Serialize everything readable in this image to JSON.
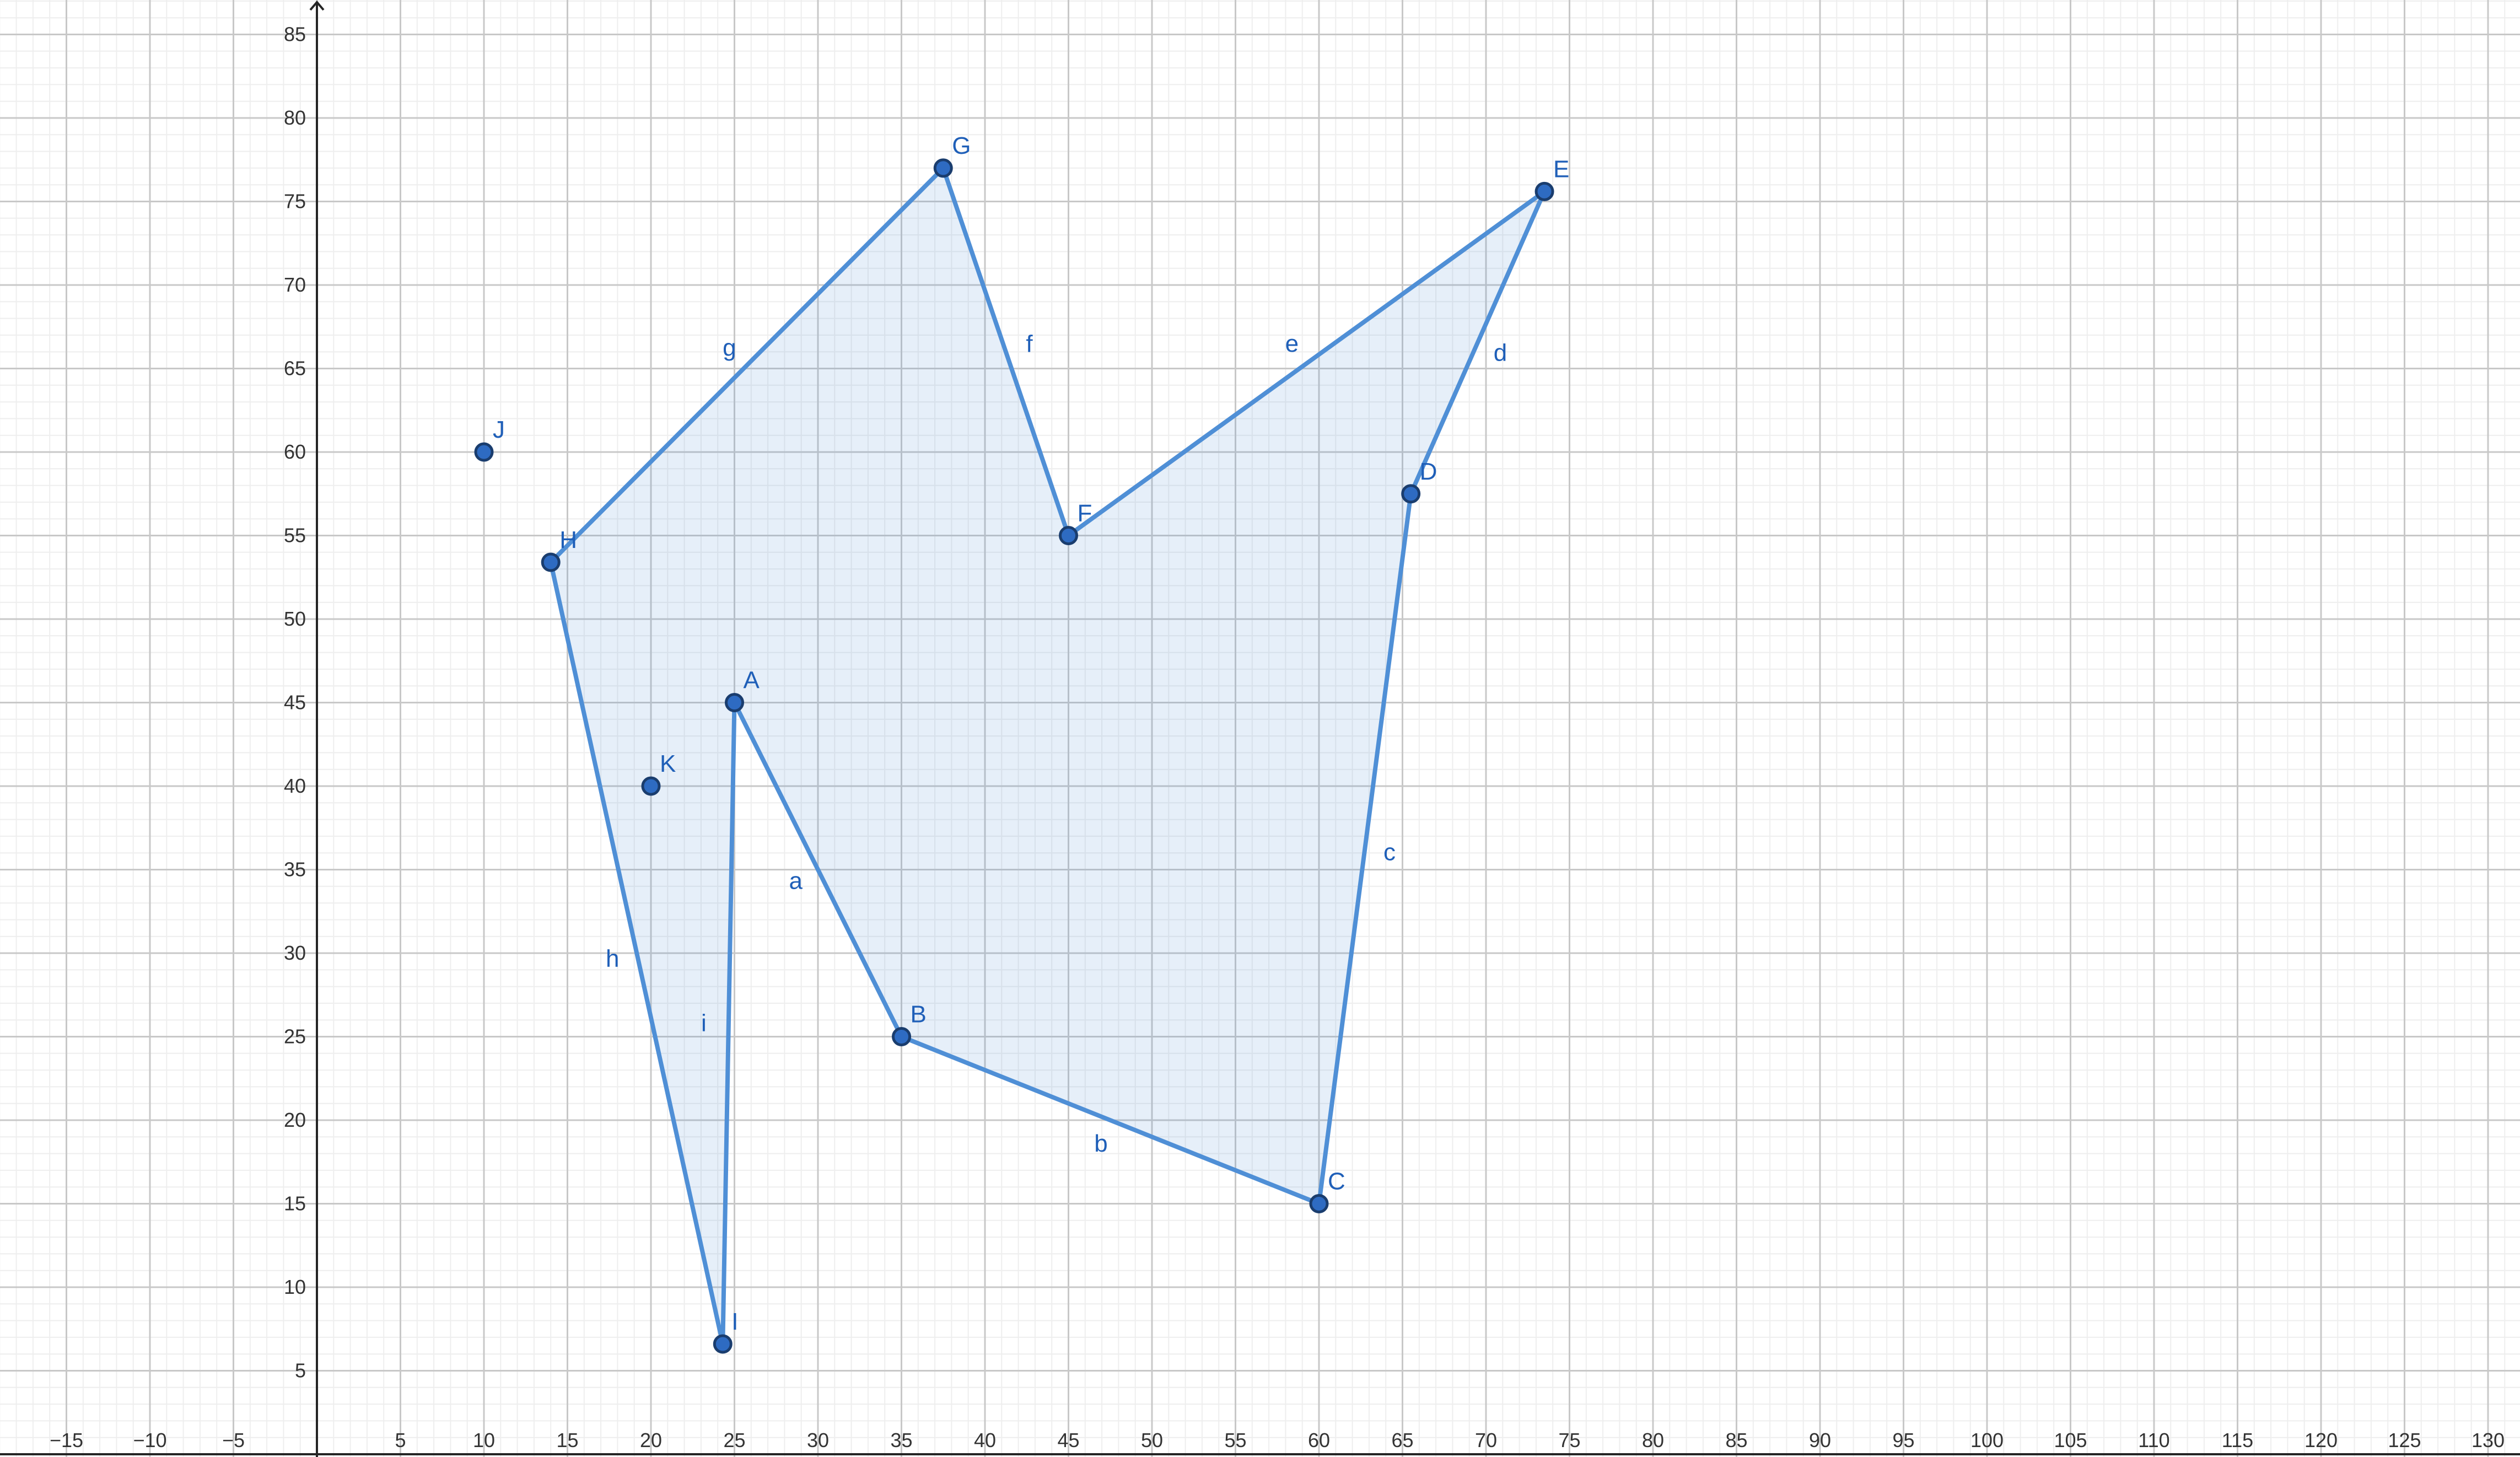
{
  "axes": {
    "x_ticks": [
      -15,
      -10,
      -5,
      5,
      10,
      15,
      20,
      25,
      30,
      35,
      40,
      45,
      50,
      55,
      60,
      65,
      70,
      75,
      80,
      85,
      90,
      95,
      100,
      105,
      110,
      115,
      120,
      125,
      130
    ],
    "y_ticks": [
      5,
      10,
      15,
      20,
      25,
      30,
      35,
      40,
      45,
      50,
      55,
      60,
      65,
      70,
      75,
      80,
      85
    ],
    "x_range": [
      -19,
      131.7
    ],
    "y_range": [
      0,
      87
    ],
    "grid": true,
    "minor_step": 1,
    "major_step": 5
  },
  "colors": {
    "line": "#4f8fd6",
    "fill": "#4f8fd6",
    "fill_opacity": 0.14,
    "point": "#2e6bc2",
    "label": "#1f5fb8"
  },
  "points": [
    {
      "id": "A",
      "x": 25,
      "y": 45
    },
    {
      "id": "B",
      "x": 35,
      "y": 25
    },
    {
      "id": "C",
      "x": 60,
      "y": 15
    },
    {
      "id": "D",
      "x": 65.5,
      "y": 57.5
    },
    {
      "id": "E",
      "x": 73.5,
      "y": 75.6
    },
    {
      "id": "F",
      "x": 45,
      "y": 55
    },
    {
      "id": "G",
      "x": 37.5,
      "y": 77
    },
    {
      "id": "H",
      "x": 14,
      "y": 53.4
    },
    {
      "id": "I",
      "x": 24.3,
      "y": 6.6
    },
    {
      "id": "J",
      "x": 10,
      "y": 60
    },
    {
      "id": "K",
      "x": 20,
      "y": 40
    }
  ],
  "polygon": [
    "A",
    "B",
    "C",
    "D",
    "E",
    "F",
    "G",
    "H",
    "I"
  ],
  "edges": [
    {
      "label": "a",
      "from": "A",
      "to": "B"
    },
    {
      "label": "b",
      "from": "B",
      "to": "C"
    },
    {
      "label": "c",
      "from": "C",
      "to": "D"
    },
    {
      "label": "d",
      "from": "D",
      "to": "E"
    },
    {
      "label": "e",
      "from": "E",
      "to": "F"
    },
    {
      "label": "f",
      "from": "F",
      "to": "G"
    },
    {
      "label": "g",
      "from": "G",
      "to": "H"
    },
    {
      "label": "h",
      "from": "H",
      "to": "I"
    },
    {
      "label": "i",
      "from": "I",
      "to": "A"
    }
  ]
}
